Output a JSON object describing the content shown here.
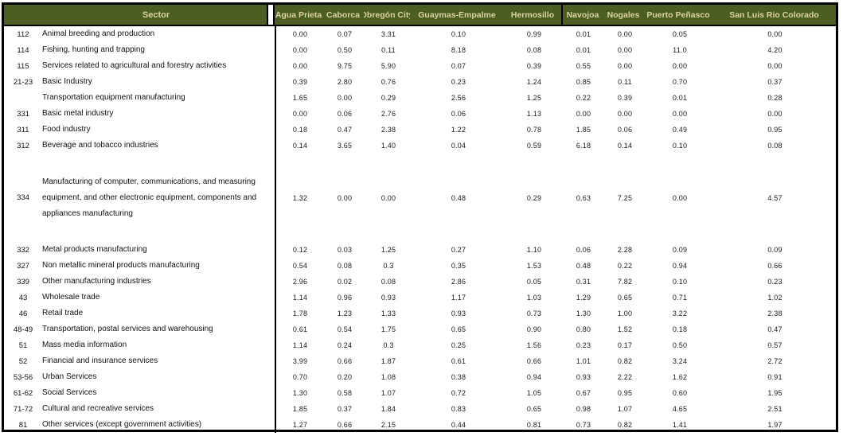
{
  "table": {
    "sector_header": "Sector",
    "columns": [
      "Agua Prieta",
      "Caborca",
      "Obregón City",
      "Guaymas-Empalme",
      "Hermosillo",
      "Navojoa",
      "Nogales",
      "Puerto Peñasco",
      "San Luis Rio Colorado"
    ],
    "rows": [
      {
        "code": "112",
        "sector": "Animal breeding and production",
        "tall": false,
        "values": [
          "0.00",
          "0.07",
          "3.31",
          "0.10",
          "0.99",
          "0.01",
          "0.00",
          "0.05",
          "0.00"
        ]
      },
      {
        "code": "114",
        "sector": "Fishing, hunting and trapping",
        "tall": false,
        "values": [
          "0.00",
          "0.50",
          "0.11",
          "8.18",
          "0.08",
          "0.01",
          "0.00",
          "11.0",
          "4.20"
        ]
      },
      {
        "code": "115",
        "sector": "Services related to agricultural and forestry activities",
        "tall": false,
        "values": [
          "0.00",
          "9.75",
          "5.90",
          "0.07",
          "0.39",
          "0.55",
          "0.00",
          "0.00",
          "0.00"
        ]
      },
      {
        "code": "21-23",
        "sector": "Basic Industry",
        "tall": false,
        "values": [
          "0.39",
          "2.80",
          "0.76",
          "0.23",
          "1.24",
          "0.85",
          "0.11",
          "0.70",
          "0.37"
        ]
      },
      {
        "code": "",
        "sector": "Transportation equipment manufacturing",
        "tall": false,
        "values": [
          "1.65",
          "0.00",
          "0.29",
          "2.56",
          "1.25",
          "0.22",
          "0.39",
          "0.01",
          "0.28"
        ]
      },
      {
        "code": "331",
        "sector": "Basic metal industry",
        "tall": false,
        "values": [
          "0.00",
          "0.06",
          "2.76",
          "0.06",
          "1.13",
          "0.00",
          "0.00",
          "0.00",
          "0.00"
        ]
      },
      {
        "code": "311",
        "sector": "Food industry",
        "tall": false,
        "values": [
          "0.18",
          "0.47",
          "2.38",
          "1.22",
          "0.78",
          "1.85",
          "0.06",
          "0.49",
          "0.95"
        ]
      },
      {
        "code": "312",
        "sector": "Beverage and tobacco industries",
        "tall": false,
        "values": [
          "0.14",
          "3.65",
          "1.40",
          "0.04",
          "0.59",
          "6.18",
          "0.14",
          "0.10",
          "0.08"
        ]
      },
      {
        "code": "334",
        "sector": "Manufacturing of computer, communications, and measuring equipment, and other electronic equipment, components and appliances manufacturing",
        "tall": true,
        "values": [
          "1.32",
          "0.00",
          "0.00",
          "0.48",
          "0.29",
          "0.63",
          "7.25",
          "0.00",
          "4.57"
        ]
      },
      {
        "code": "332",
        "sector": "Metal products manufacturing",
        "tall": false,
        "values": [
          "0.12",
          "0.03",
          "1.25",
          "0.27",
          "1.10",
          "0.06",
          "2.28",
          "0.09",
          "0.09"
        ]
      },
      {
        "code": "327",
        "sector": "Non metallic mineral products manufacturing",
        "tall": false,
        "values": [
          "0.54",
          "0.08",
          "0.3",
          "0.35",
          "1.53",
          "0.48",
          "0.22",
          "0.94",
          "0.66"
        ]
      },
      {
        "code": "339",
        "sector": "Other manufacturing industries",
        "tall": false,
        "values": [
          "2.96",
          "0.02",
          "0.08",
          "2.86",
          "0.05",
          "0.31",
          "7.82",
          "0.10",
          "0.23"
        ]
      },
      {
        "code": "43",
        "sector": "Wholesale trade",
        "tall": false,
        "values": [
          "1.14",
          "0.96",
          "0.93",
          "1.17",
          "1.03",
          "1.29",
          "0.65",
          "0.71",
          "1.02"
        ]
      },
      {
        "code": "46",
        "sector": "Retail trade",
        "tall": false,
        "values": [
          "1.78",
          "1.23",
          "1.33",
          "0.93",
          "0.73",
          "1.30",
          "1.00",
          "3.22",
          "2.38"
        ]
      },
      {
        "code": "48-49",
        "sector": "Transportation, postal services and warehousing",
        "tall": false,
        "values": [
          "0.61",
          "0.54",
          "1.75",
          "0.65",
          "0.90",
          "0.80",
          "1.52",
          "0.18",
          "0.47"
        ]
      },
      {
        "code": "51",
        "sector": "Mass media information",
        "tall": false,
        "values": [
          "1.14",
          "0.24",
          "0.3",
          "0.25",
          "1.56",
          "0.23",
          "0.17",
          "0.50",
          "0.57"
        ]
      },
      {
        "code": "52",
        "sector": "Financial and insurance services",
        "tall": false,
        "values": [
          "3.99",
          "0.66",
          "1.87",
          "0.61",
          "0.66",
          "1.01",
          "0.82",
          "3.24",
          "2.72"
        ]
      },
      {
        "code": "53-56",
        "sector": "Urban Services",
        "tall": false,
        "values": [
          "0.70",
          "0.20",
          "1.08",
          "0.38",
          "0.94",
          "0.93",
          "2.22",
          "1.62",
          "0.91"
        ]
      },
      {
        "code": "61-62",
        "sector": "Social Services",
        "tall": false,
        "values": [
          "1.30",
          "0.58",
          "1.07",
          "0.72",
          "1.05",
          "0.67",
          "0.95",
          "0.60",
          "1.95"
        ]
      },
      {
        "code": "71-72",
        "sector": "Cultural and recreative services",
        "tall": false,
        "values": [
          "1.85",
          "0.37",
          "1.84",
          "0.83",
          "0.65",
          "0.98",
          "1.07",
          "4.65",
          "2.51"
        ]
      },
      {
        "code": "81",
        "sector": "Other services (except government activities)",
        "tall": false,
        "values": [
          "1.27",
          "0.66",
          "2.15",
          "0.44",
          "0.81",
          "0.73",
          "0.82",
          "1.41",
          "1.97"
        ]
      }
    ],
    "colors": {
      "header_bg": "#4C5E23",
      "header_text": "#D9D2A2",
      "border": "#000000"
    }
  }
}
